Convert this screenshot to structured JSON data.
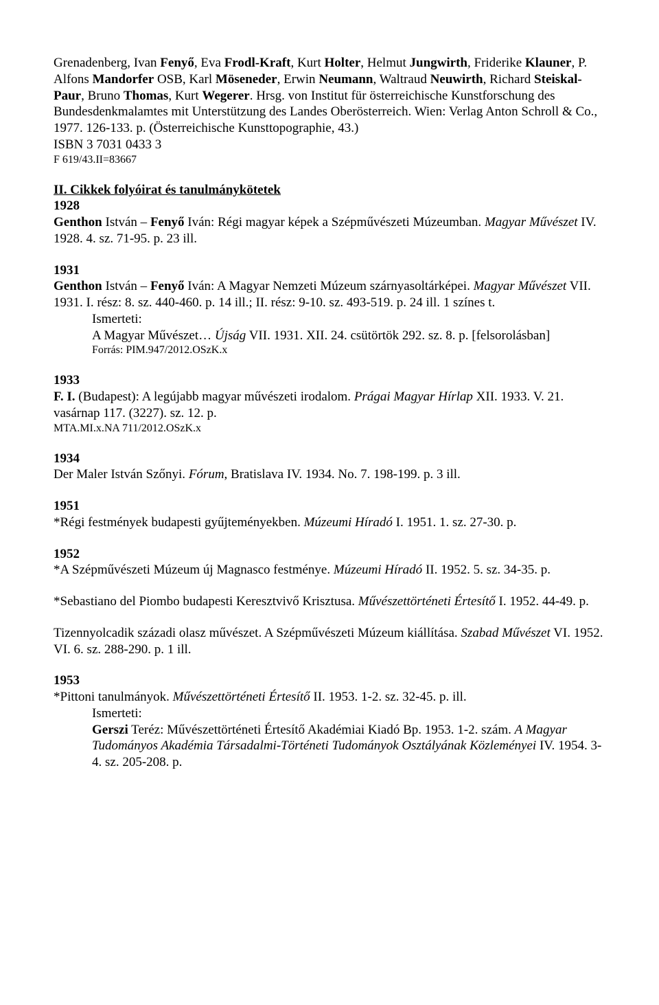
{
  "topParagraph": {
    "line1_pre": "Grenadenberg, Ivan ",
    "line1_b1": "Fenyő",
    "line1_mid1": ", Eva ",
    "line1_b2": "Frodl-Kraft",
    "line1_mid2": ", Kurt ",
    "line1_b3": "Holter",
    "line1_mid3": ", Helmut ",
    "line1_b4": "Jungwirth",
    "line1_mid4": ", Friderike ",
    "line2_b1": "Klauner",
    "line2_mid1": ", P. Alfons ",
    "line2_b2": "Mandorfer",
    "line2_mid2": " OSB, Karl ",
    "line2_b3": "Möseneder",
    "line2_mid3": ", Erwin ",
    "line2_b4": "Neumann",
    "line2_mid4": ", Waltraud ",
    "line3_b1": "Neuwirth",
    "line3_mid1": ", Richard ",
    "line3_b2": "Steiskal-Paur",
    "line3_mid2": ", Bruno ",
    "line3_b3": "Thomas",
    "line3_mid3": ", Kurt ",
    "line3_b4": "Wegerer",
    "line3_tail": ". Hrsg. von Institut für österreichische Kunstforschung des Bundesdenkmalamtes mit Unterstützung des Landes Oberösterreich. Wien: Verlag Anton Schroll & Co., 1977. 126-133. p. (Österreichische Kunsttopographie, 43.)",
    "isbn": "ISBN 3 7031 0433 3",
    "ref": "F 619/43.II=83667"
  },
  "sectionII": {
    "heading": "II. Cikkek folyóirat és tanulmánykötetek",
    "y1928": "1928",
    "e1928_pre": "",
    "e1928_b1": "Genthon",
    "e1928_mid1": " István – ",
    "e1928_b2": "Fenyő",
    "e1928_mid2": " Iván: Régi magyar képek a Szépművészeti Múzeumban. ",
    "e1928_i1": "Magyar Művészet",
    "e1928_tail": " IV. 1928. 4. sz. 71-95. p. 23 ill.",
    "y1931": "1931",
    "e1931_b1": "Genthon",
    "e1931_mid1": " István – ",
    "e1931_b2": "Fenyő",
    "e1931_mid2": " Iván: A Magyar Nemzeti Múzeum szárnyasoltárképei. ",
    "e1931_i1": "Magyar Művészet",
    "e1931_tail": " VII. 1931. I. rész: 8. sz. 440-460. p. 14 ill.; II. rész: 9-10. sz. 493-519. p. 24 ill. 1 színes t.",
    "ismerteti": "Ismerteti:",
    "e1931_ind1_pre": "A Magyar Művészet… ",
    "e1931_ind1_i": "Újság",
    "e1931_ind1_tail": " VII. 1931. XII. 24. csütörtök 292. sz. 8. p. [felsorolásban]",
    "e1931_forras": "Forrás: PIM.947/2012.OSzK.x",
    "y1933": "1933",
    "e1933_b1": "F. I.",
    "e1933_mid1": " (Budapest): A legújabb magyar művészeti irodalom. ",
    "e1933_i1": "Prágai Magyar Hírlap",
    "e1933_tail": " XII. 1933. V. 21. vasárnap 117. (3227). sz. 12. p.",
    "e1933_ref": "MTA.MI.x.NA 711/2012.OSzK.x",
    "y1934": "1934",
    "e1934_pre": "Der Maler István Szőnyi. ",
    "e1934_i1": "Fórum",
    "e1934_tail": ", Bratislava IV. 1934. No. 7. 198-199. p. 3 ill.",
    "y1951": "1951",
    "e1951_pre": "*Régi festmények budapesti gyűjteményekben. ",
    "e1951_i1": "Múzeumi Híradó",
    "e1951_tail": " I. 1951. 1. sz. 27-30. p.",
    "y1952": "1952",
    "e1952a_pre": "*A Szépművészeti Múzeum új Magnasco festménye. ",
    "e1952a_i1": "Múzeumi Híradó",
    "e1952a_tail": " II. 1952. 5. sz. 34-35. p.",
    "e1952b_pre": "*Sebastiano del Piombo budapesti Keresztvivő Krisztusa. ",
    "e1952b_i1": "Művészettörténeti Értesítő",
    "e1952b_tail": " I. 1952. 44-49. p.",
    "e1952c_pre": "Tizennyolcadik századi olasz művészet. A Szépművészeti Múzeum kiállítása. ",
    "e1952c_i1": "Szabad Művészet",
    "e1952c_tail": " VI. 1952. VI. 6. sz. 288-290. p. 1 ill.",
    "y1953": "1953",
    "e1953_pre": "*Pittoni tanulmányok. ",
    "e1953_i1": "Művészettörténeti Értesítő",
    "e1953_tail": " II. 1953. 1-2. sz. 32-45. p. ill.",
    "e1953_ind1_b": "Gerszi",
    "e1953_ind1_tail": " Teréz: Művészettörténeti Értesítő Akadémiai Kiadó Bp. 1953. 1-2. szám. ",
    "e1953_ind1_i": "A Magyar Tudományos Akadémia Társadalmi-Történeti Tudományok Osztályának Közleményei",
    "e1953_ind1_end": " IV. 1954. 3-4. sz. 205-208. p."
  }
}
